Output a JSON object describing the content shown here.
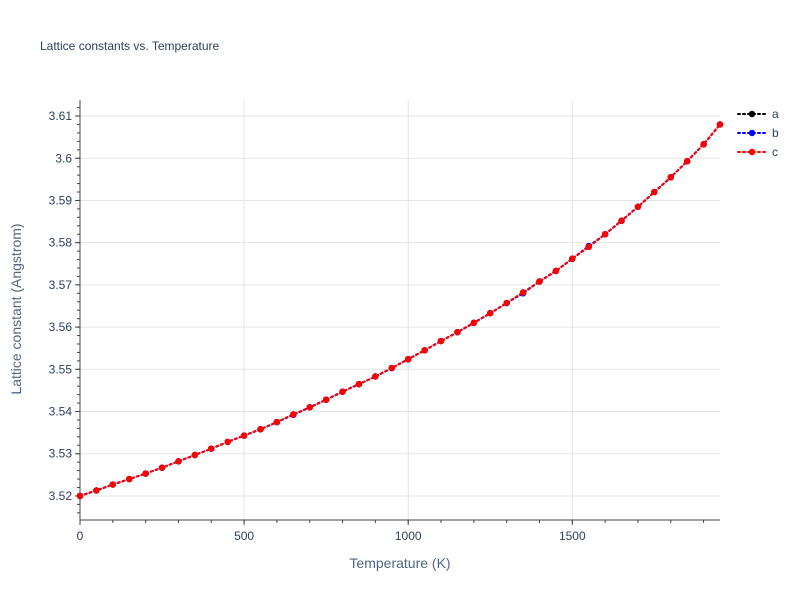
{
  "chart_data": {
    "type": "line",
    "title": "Lattice constants vs. Temperature",
    "xlabel": "Temperature (K)",
    "ylabel": "Lattice constant (Angstrom)",
    "xlim": [
      0,
      1950
    ],
    "ylim": [
      3.5143,
      3.6138
    ],
    "x_ticks": [
      0,
      500,
      1000,
      1500
    ],
    "x_tick_labels": [
      "0",
      "500",
      "1000",
      "1500"
    ],
    "y_ticks": [
      3.52,
      3.53,
      3.54,
      3.55,
      3.56,
      3.57,
      3.58,
      3.59,
      3.6,
      3.61
    ],
    "y_tick_labels": [
      "3.52",
      "3.53",
      "3.54",
      "3.55",
      "3.56",
      "3.57",
      "3.58",
      "3.59",
      "3.6",
      "3.61"
    ],
    "grid": true,
    "legend_position": "top-right",
    "line_style": "dotted-with-markers",
    "x": [
      0,
      50,
      100,
      150,
      200,
      250,
      300,
      350,
      400,
      450,
      500,
      550,
      600,
      650,
      700,
      750,
      800,
      850,
      900,
      950,
      1000,
      1050,
      1100,
      1150,
      1200,
      1250,
      1300,
      1350,
      1400,
      1450,
      1500,
      1550,
      1600,
      1650,
      1700,
      1750,
      1800,
      1850,
      1900,
      1950
    ],
    "series": [
      {
        "name": "a",
        "color": "#000000",
        "values": [
          3.52,
          3.5213,
          3.5227,
          3.524,
          3.5253,
          3.5267,
          3.5282,
          3.5297,
          3.5312,
          3.5328,
          3.5343,
          3.5358,
          3.5375,
          3.5393,
          3.541,
          3.5428,
          3.5447,
          3.5465,
          3.5483,
          3.5503,
          3.5524,
          3.5545,
          3.5567,
          3.5588,
          3.561,
          3.5633,
          3.5657,
          3.5682,
          3.5708,
          3.5733,
          3.5762,
          3.579,
          3.582,
          3.5852,
          3.5885,
          3.592,
          3.5955,
          3.5993,
          3.6033,
          3.608
        ]
      },
      {
        "name": "b",
        "color": "#0000ff",
        "values": [
          3.52,
          3.5213,
          3.5227,
          3.524,
          3.5253,
          3.5267,
          3.5282,
          3.5297,
          3.5312,
          3.5328,
          3.5343,
          3.5358,
          3.5375,
          3.5392,
          3.541,
          3.5428,
          3.5447,
          3.5465,
          3.5483,
          3.5503,
          3.5524,
          3.5545,
          3.5567,
          3.5588,
          3.561,
          3.5633,
          3.5657,
          3.568,
          3.5708,
          3.5733,
          3.5762,
          3.5792,
          3.582,
          3.5852,
          3.5885,
          3.592,
          3.5955,
          3.5993,
          3.6033,
          3.608
        ]
      },
      {
        "name": "c",
        "color": "#ff0000",
        "values": [
          3.52,
          3.5213,
          3.5227,
          3.524,
          3.5253,
          3.5267,
          3.5282,
          3.5297,
          3.5312,
          3.5328,
          3.5343,
          3.5358,
          3.5375,
          3.5393,
          3.541,
          3.5428,
          3.5447,
          3.5465,
          3.5483,
          3.5503,
          3.5524,
          3.5545,
          3.5567,
          3.5588,
          3.561,
          3.5633,
          3.5657,
          3.5682,
          3.5708,
          3.5733,
          3.5762,
          3.579,
          3.582,
          3.5852,
          3.5885,
          3.592,
          3.5955,
          3.5993,
          3.6033,
          3.608
        ]
      }
    ]
  },
  "colors": {
    "text": "#2a3f5f",
    "axis_title": "#506784",
    "grid": "#e5e5e5",
    "axis_line": "#444444"
  }
}
